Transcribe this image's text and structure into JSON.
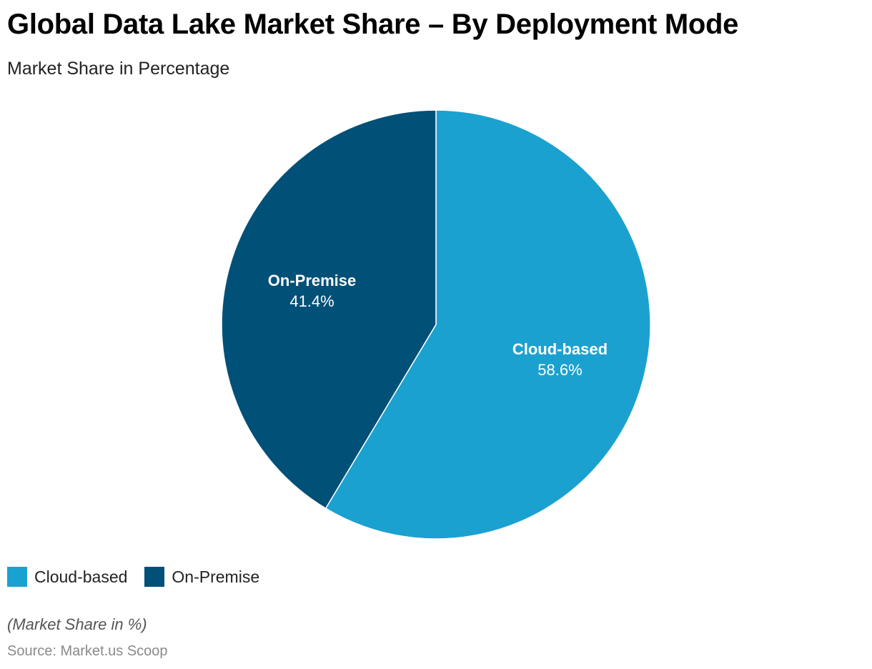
{
  "chart_data": {
    "type": "pie",
    "title": "Global Data Lake Market Share – By Deployment Mode",
    "subtitle": "Market Share in Percentage",
    "categories": [
      "Cloud-based",
      "On-Premise"
    ],
    "values": [
      58.6,
      41.4
    ],
    "value_labels": [
      "58.6%",
      "41.4%"
    ],
    "colors": [
      "#1ba1cf",
      "#005078"
    ],
    "legend_position": "bottom-left",
    "footnote": "(Market Share in %)",
    "source": "Source: Market.us Scoop"
  }
}
